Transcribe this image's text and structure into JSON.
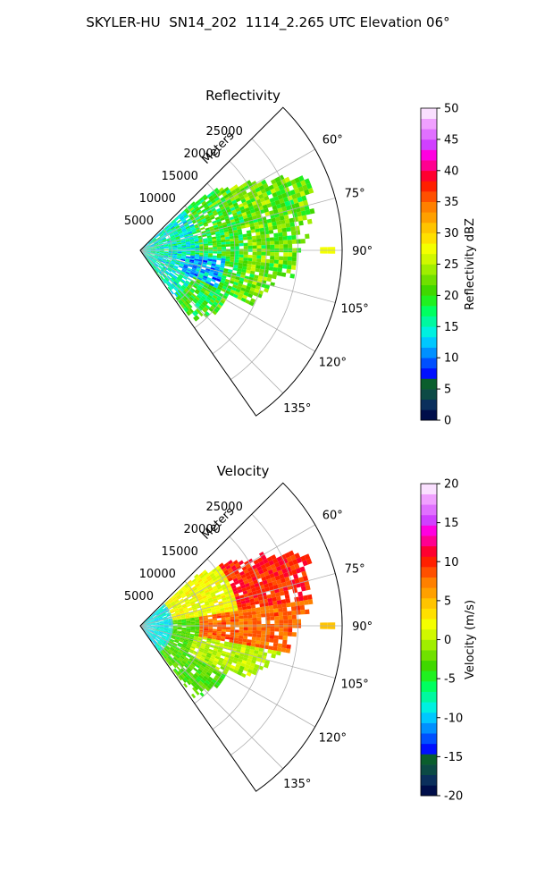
{
  "title": "SKYLER-HU  SN14_202  1114_2.265 UTC Elevation 06°",
  "chart_data": [
    {
      "type": "heatmap",
      "projection": "polar-sector",
      "title": "Reflectivity",
      "range_label": "Meters",
      "range_ticks": [
        5000,
        10000,
        15000,
        20000,
        25000
      ],
      "range_max": 32000,
      "azimuth_ticks": [
        "60°",
        "75°",
        "90°",
        "105°",
        "120°",
        "135°"
      ],
      "azimuth_tick_values": [
        60,
        75,
        90,
        105,
        120,
        135
      ],
      "azimuth_range": [
        45,
        145
      ],
      "colorbar": {
        "label": "Reflectivity dBZ",
        "min": 0,
        "max": 50,
        "ticks": [
          0,
          5,
          10,
          15,
          20,
          25,
          30,
          35,
          40,
          45,
          50
        ],
        "colors": [
          "#000e4a",
          "#0b2f5c",
          "#0c4a45",
          "#0a5e2d",
          "#0010ff",
          "#0050ff",
          "#0090ff",
          "#00c8ff",
          "#00f0e0",
          "#00f8a0",
          "#00ff60",
          "#20f020",
          "#40d800",
          "#70e000",
          "#a0ee00",
          "#d0f800",
          "#f4ff00",
          "#ffe000",
          "#ffc400",
          "#ffa000",
          "#ff8000",
          "#ff5000",
          "#ff2000",
          "#ff0030",
          "#ff0090",
          "#ff00e0",
          "#d040ff",
          "#e070ff",
          "#f0a0ff",
          "#fae0ff"
        ]
      },
      "echo_summary": {
        "near_range_value": 15,
        "mid_range_value": 20,
        "far_range_value": 22,
        "isolated_far_echo_value": 27
      },
      "grid": true
    },
    {
      "type": "heatmap",
      "projection": "polar-sector",
      "title": "Velocity",
      "range_label": "Meters",
      "range_ticks": [
        5000,
        10000,
        15000,
        20000,
        25000
      ],
      "range_max": 32000,
      "azimuth_ticks": [
        "60°",
        "75°",
        "90°",
        "105°",
        "120°",
        "135°"
      ],
      "azimuth_tick_values": [
        60,
        75,
        90,
        105,
        120,
        135
      ],
      "azimuth_range": [
        45,
        145
      ],
      "colorbar": {
        "label": "Velocity (m/s)",
        "min": -20,
        "max": 20,
        "ticks": [
          -20,
          -15,
          -10,
          -5,
          0,
          5,
          10,
          15,
          20
        ],
        "colors": [
          "#000e4a",
          "#0b2f5c",
          "#0c4a45",
          "#0a5e2d",
          "#0010ff",
          "#0050ff",
          "#0090ff",
          "#00c8ff",
          "#00f0e0",
          "#00f8a0",
          "#00ff60",
          "#20f020",
          "#40d800",
          "#70e000",
          "#a0ee00",
          "#d0f800",
          "#f4ff00",
          "#ffe000",
          "#ffc400",
          "#ffa000",
          "#ff8000",
          "#ff5000",
          "#ff2000",
          "#ff0030",
          "#ff0090",
          "#ff00e0",
          "#d040ff",
          "#e070ff",
          "#f0a0ff",
          "#fae0ff"
        ]
      },
      "echo_summary": {
        "near_range_value": -9,
        "north_far_value": 10,
        "east_mid_value": 8,
        "south_mid_value": 0,
        "southeast_value": -3,
        "isolated_far_echo_value": 4
      },
      "grid": true
    }
  ]
}
